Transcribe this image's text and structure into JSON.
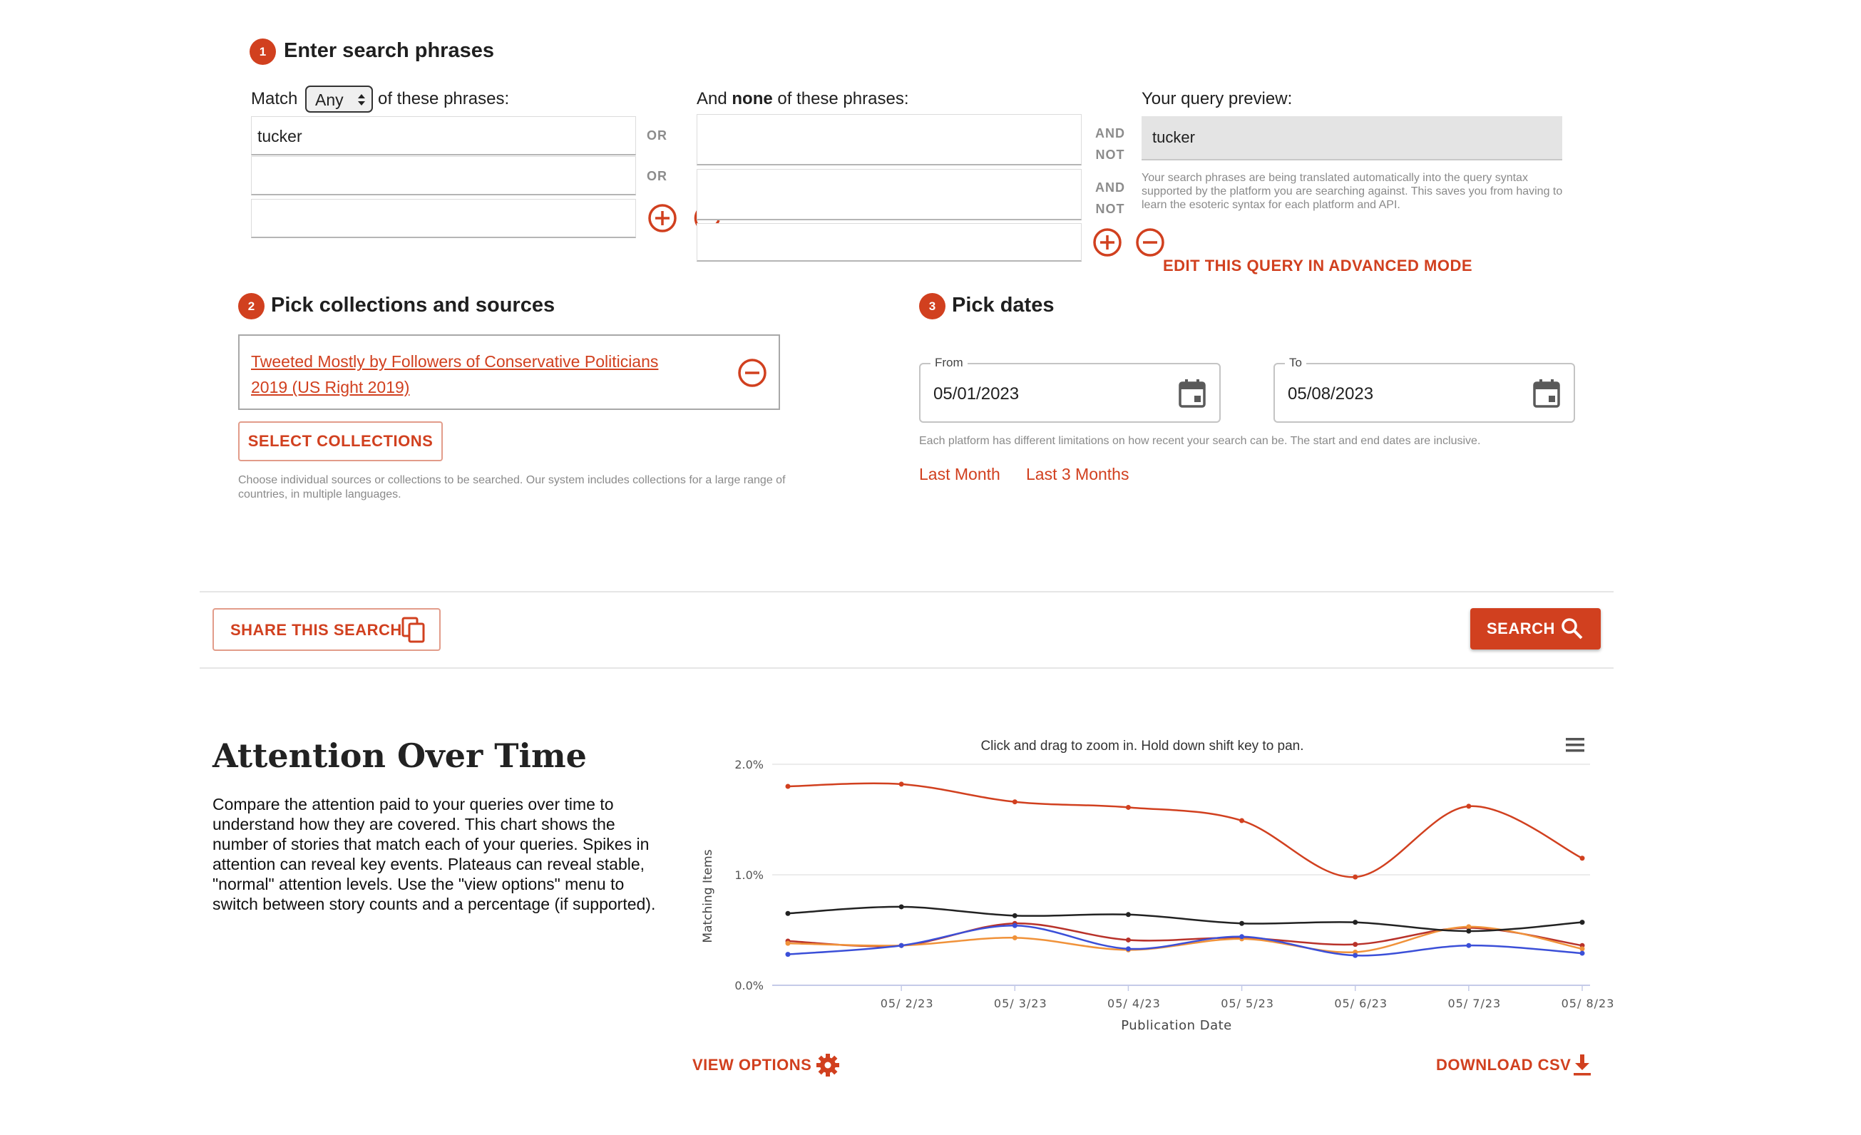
{
  "step1": {
    "number": "1",
    "title": "Enter search phrases",
    "match_prefix": "Match",
    "match_select": "Any",
    "match_suffix": "of these phrases:",
    "any_phrases": [
      "tucker",
      "",
      ""
    ],
    "or_label": "OR",
    "none_prefix": "And ",
    "none_bold": "none",
    "none_suffix": " of these phrases:",
    "none_phrases": [
      "",
      "",
      ""
    ],
    "and_label": "AND",
    "not_label": "NOT",
    "preview_label": "Your query preview:",
    "preview_value": "tucker",
    "preview_help": "Your search phrases are being translated automatically into the query syntax supported by the platform you are searching against. This saves you from having to learn the esoteric syntax for each platform and API.",
    "advanced_link": "EDIT THIS QUERY IN ADVANCED MODE"
  },
  "step2": {
    "number": "2",
    "title": "Pick collections and sources",
    "collection_name_line1": "Tweeted Mostly by Followers of Conservative Politicians",
    "collection_name_line2": "2019 (US Right 2019)",
    "select_button": "SELECT COLLECTIONS",
    "help": "Choose individual sources or collections to be searched. Our system includes collections for a large range of countries, in multiple languages."
  },
  "step3": {
    "number": "3",
    "title": "Pick dates",
    "from_label": "From",
    "from_value": "05/01/2023",
    "to_label": "To",
    "to_value": "05/08/2023",
    "help": "Each platform has different limitations on how recent your search can be. The start and end dates are inclusive.",
    "last_month": "Last Month",
    "last_3_months": "Last 3 Months"
  },
  "actions": {
    "share": "SHARE THIS SEARCH",
    "search": "SEARCH"
  },
  "attention": {
    "title": "Attention Over Time",
    "description": "Compare the attention paid to your queries over time to understand how they are covered. This chart shows the number of stories that match each of your queries. Spikes in attention can reveal key events. Plateaus can reveal stable, \"normal\" attention levels. Use the \"view options\" menu to switch between story counts and a percentage (if supported).",
    "view_options": "VIEW OPTIONS",
    "download_csv": "DOWNLOAD CSV"
  },
  "colors": {
    "accent": "#d1401f",
    "series_red": "#d1401f",
    "series_black": "#222222",
    "series_blue": "#3b4fd8",
    "series_orange": "#f0923a"
  },
  "chart_data": {
    "type": "line",
    "subtitle": "Click and drag to zoom in. Hold down shift key to pan.",
    "xlabel": "Publication Date",
    "ylabel": "Matching Items",
    "ylim": [
      0,
      2.0
    ],
    "y_ticks": [
      "0.0%",
      "1.0%",
      "2.0%"
    ],
    "x": [
      "05/01/23",
      "05/02/23",
      "05/03/23",
      "05/04/23",
      "05/05/23",
      "05/06/23",
      "05/07/23",
      "05/08/23"
    ],
    "x_tick_labels": [
      "05/ 2/23",
      "05/ 3/23",
      "05/ 4/23",
      "05/ 5/23",
      "05/ 6/23",
      "05/ 7/23",
      "05/ 8/23"
    ],
    "series": [
      {
        "name": "red",
        "color": "#d1401f",
        "values": [
          1.8,
          1.82,
          1.66,
          1.61,
          1.49,
          0.98,
          1.62,
          1.15
        ]
      },
      {
        "name": "black",
        "color": "#222222",
        "values": [
          0.65,
          0.71,
          0.63,
          0.64,
          0.56,
          0.57,
          0.49,
          0.57
        ]
      },
      {
        "name": "blue",
        "color": "#3b4fd8",
        "values": [
          0.28,
          0.36,
          0.54,
          0.33,
          0.44,
          0.27,
          0.36,
          0.29
        ]
      },
      {
        "name": "orange",
        "color": "#f0923a",
        "values": [
          0.38,
          0.36,
          0.43,
          0.32,
          0.42,
          0.3,
          0.53,
          0.33
        ]
      },
      {
        "name": "darkred",
        "color": "#b8322a",
        "values": [
          0.4,
          0.36,
          0.56,
          0.41,
          0.43,
          0.37,
          0.52,
          0.36
        ]
      }
    ]
  }
}
